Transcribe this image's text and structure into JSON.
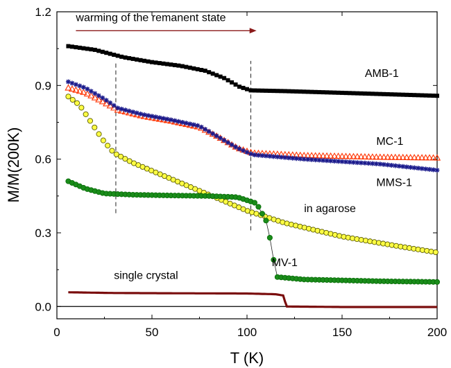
{
  "chart_data": {
    "type": "scatter",
    "title": "",
    "xlabel": "T (K)",
    "ylabel": "M/M(200K)",
    "xlim": [
      0,
      200
    ],
    "ylim": [
      -0.05,
      1.2
    ],
    "xticks": [
      0,
      50,
      100,
      150,
      200
    ],
    "yticks": [
      0.0,
      0.3,
      0.6,
      0.9,
      1.2
    ],
    "xtick_labels": [
      "0",
      "50",
      "100",
      "150",
      "200"
    ],
    "ytick_labels": [
      "0.0",
      "0.3",
      "0.6",
      "0.9",
      "1.2"
    ],
    "grid": false,
    "annotation": {
      "text": "warming of the remanent state",
      "arrow_x": [
        10,
        105
      ],
      "arrow_y": 1.14,
      "arrow_color": "#8b1a1a"
    },
    "vlines": [
      {
        "x": 31,
        "y": [
          0.38,
          1.0
        ]
      },
      {
        "x": 102,
        "y": [
          0.31,
          1.0
        ]
      }
    ],
    "zero_line": {
      "y": 0.0,
      "color": "#000000"
    },
    "series": [
      {
        "name": "AMB-1",
        "marker": "square",
        "color": "#000000",
        "fill": "#000000",
        "step": 2,
        "label": {
          "text": "AMB-1",
          "x": 162,
          "y": 0.935
        },
        "keypoints": [
          [
            6,
            1.06
          ],
          [
            20,
            1.045
          ],
          [
            35,
            1.015
          ],
          [
            50,
            0.995
          ],
          [
            65,
            0.98
          ],
          [
            78,
            0.96
          ],
          [
            88,
            0.93
          ],
          [
            96,
            0.895
          ],
          [
            102,
            0.88
          ],
          [
            120,
            0.877
          ],
          [
            150,
            0.87
          ],
          [
            200,
            0.858
          ]
        ]
      },
      {
        "name": "MC-1",
        "marker": "triangle",
        "color": "#ff3300",
        "fill": "none",
        "step": 2,
        "label": {
          "text": "MC-1",
          "x": 168,
          "y": 0.658
        },
        "keypoints": [
          [
            6,
            0.89
          ],
          [
            15,
            0.87
          ],
          [
            25,
            0.83
          ],
          [
            32,
            0.8
          ],
          [
            45,
            0.775
          ],
          [
            60,
            0.755
          ],
          [
            75,
            0.73
          ],
          [
            85,
            0.69
          ],
          [
            95,
            0.645
          ],
          [
            103,
            0.625
          ],
          [
            130,
            0.615
          ],
          [
            170,
            0.608
          ],
          [
            200,
            0.605
          ]
        ]
      },
      {
        "name": "MMS-1",
        "marker": "star",
        "color": "#1a1a8c",
        "fill": "#1a1a8c",
        "step": 2,
        "label": {
          "text": "MMS-1",
          "x": 168,
          "y": 0.49
        },
        "keypoints": [
          [
            6,
            0.915
          ],
          [
            15,
            0.89
          ],
          [
            25,
            0.845
          ],
          [
            32,
            0.808
          ],
          [
            45,
            0.782
          ],
          [
            60,
            0.76
          ],
          [
            75,
            0.735
          ],
          [
            85,
            0.69
          ],
          [
            95,
            0.645
          ],
          [
            103,
            0.618
          ],
          [
            130,
            0.6
          ],
          [
            170,
            0.58
          ],
          [
            200,
            0.555
          ]
        ]
      },
      {
        "name": "in agarose",
        "marker": "circle",
        "color": "#5a5a00",
        "fill": "#ffff44",
        "step": 2.3,
        "label": {
          "text": "in agarose",
          "x": 130,
          "y": 0.385
        },
        "keypoints": [
          [
            6,
            0.855
          ],
          [
            12,
            0.82
          ],
          [
            18,
            0.75
          ],
          [
            24,
            0.68
          ],
          [
            30,
            0.625
          ],
          [
            40,
            0.585
          ],
          [
            60,
            0.52
          ],
          [
            80,
            0.455
          ],
          [
            100,
            0.39
          ],
          [
            120,
            0.34
          ],
          [
            150,
            0.285
          ],
          [
            180,
            0.245
          ],
          [
            200,
            0.22
          ]
        ]
      },
      {
        "name": "MV-1",
        "marker": "circle",
        "color": "#0a6e0a",
        "fill": "#1a8c1a",
        "step": 2,
        "label": {
          "text": "MV-1",
          "x": 113,
          "y": 0.165
        },
        "keypoints": [
          [
            6,
            0.51
          ],
          [
            15,
            0.48
          ],
          [
            25,
            0.46
          ],
          [
            40,
            0.455
          ],
          [
            60,
            0.452
          ],
          [
            80,
            0.45
          ],
          [
            95,
            0.445
          ],
          [
            105,
            0.42
          ],
          [
            110,
            0.35
          ],
          [
            112,
            0.28
          ],
          [
            114,
            0.19
          ],
          [
            116,
            0.12
          ],
          [
            130,
            0.11
          ],
          [
            170,
            0.103
          ],
          [
            200,
            0.1
          ]
        ]
      },
      {
        "name": "single crystal",
        "marker": "line",
        "color": "#7a0d0d",
        "fill": "none",
        "step": 1,
        "label": {
          "text": "single crystal",
          "x": 30,
          "y": 0.112
        },
        "keypoints": [
          [
            6,
            0.058
          ],
          [
            30,
            0.055
          ],
          [
            60,
            0.054
          ],
          [
            100,
            0.053
          ],
          [
            115,
            0.05
          ],
          [
            119,
            0.045
          ],
          [
            120,
            0.02
          ],
          [
            121,
            0.0
          ],
          [
            150,
            -0.002
          ],
          [
            200,
            -0.002
          ]
        ]
      }
    ]
  }
}
